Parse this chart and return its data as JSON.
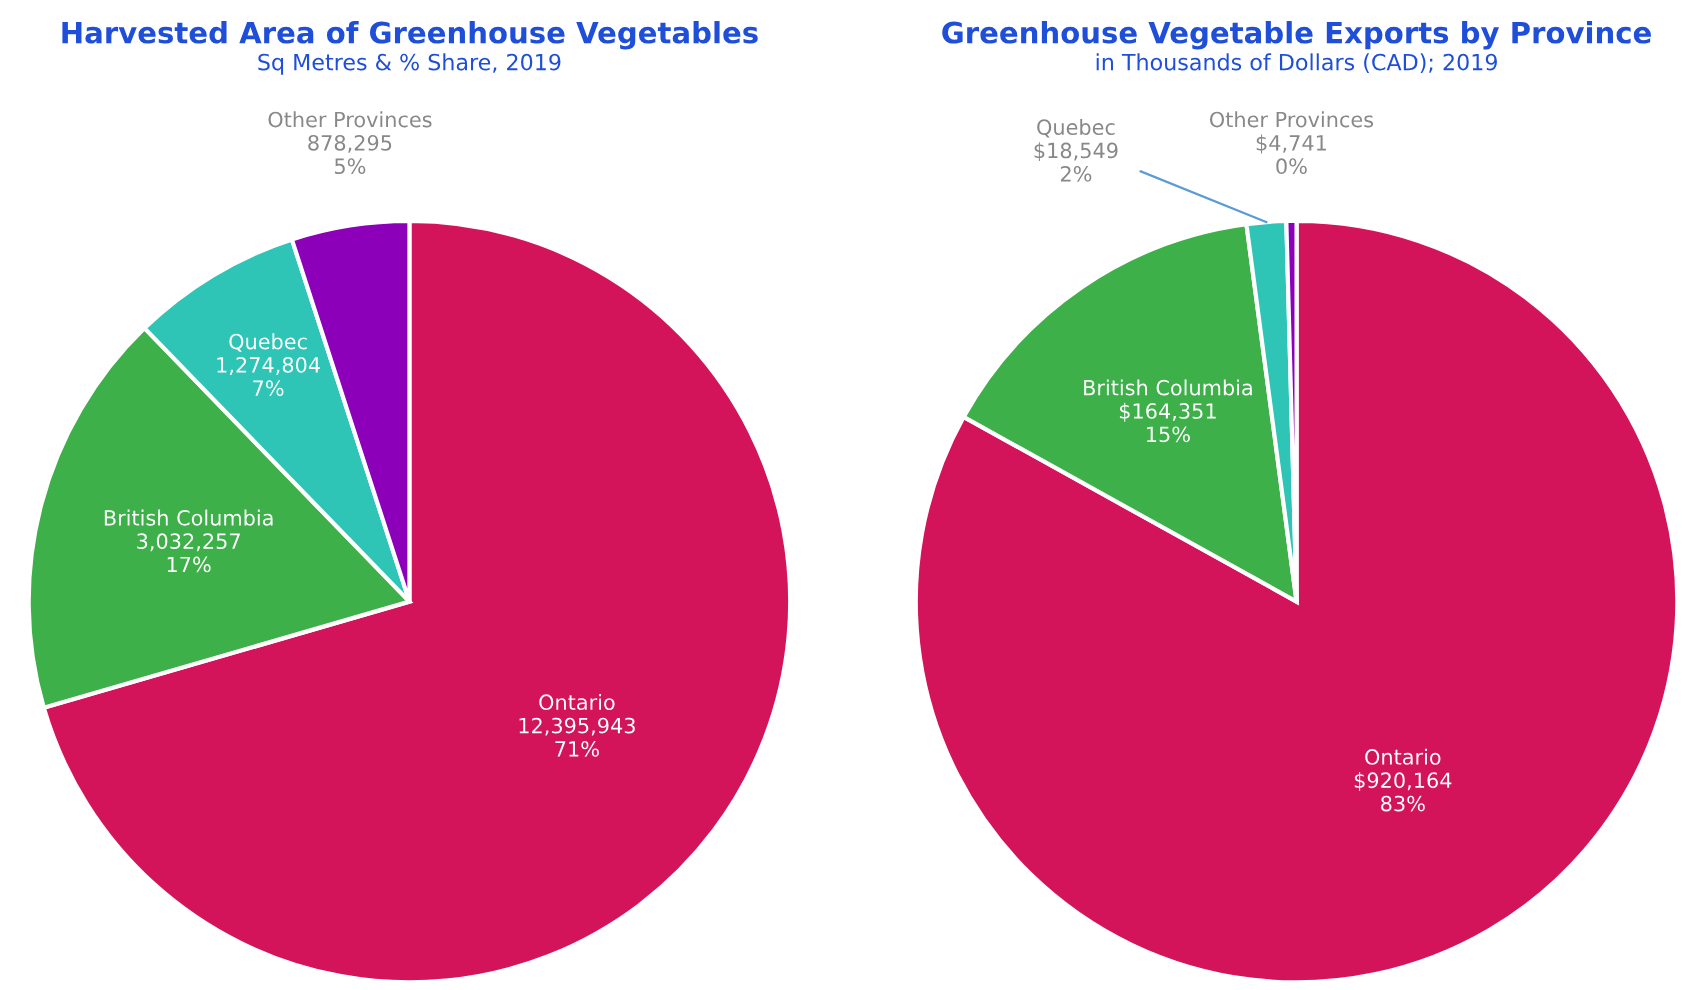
{
  "chart_data": [
    {
      "type": "pie",
      "title": "Harvested Area of Greenhouse Vegetables",
      "subtitle": "Sq Metres & % Share, 2019",
      "categories": [
        "Ontario",
        "British Columbia",
        "Quebec",
        "Other Provinces"
      ],
      "values": [
        12395943,
        3032257,
        1274804,
        878295
      ],
      "value_labels": [
        "12,395,943\n71%",
        "3,032,257\n17%",
        "1,274,804\n7%",
        "878,295\n5%"
      ],
      "colors": [
        "#d4145a",
        "#3db049",
        "#2ec4b6",
        "#8b00b8"
      ]
    },
    {
      "type": "pie",
      "title": "Greenhouse Vegetable Exports by Province",
      "subtitle": "in Thousands of Dollars (CAD); 2019",
      "categories": [
        "Ontario",
        "British Columbia",
        "Quebec",
        "Other Provinces"
      ],
      "values": [
        920164,
        164351,
        18549,
        4741
      ],
      "value_labels": [
        "$920,164\n83%",
        "$164,351\n15%",
        "$18,549\n2%",
        "$4,741\n0%"
      ],
      "colors": [
        "#d4145a",
        "#3db049",
        "#2ec4b6",
        "#8b00b8"
      ]
    }
  ]
}
